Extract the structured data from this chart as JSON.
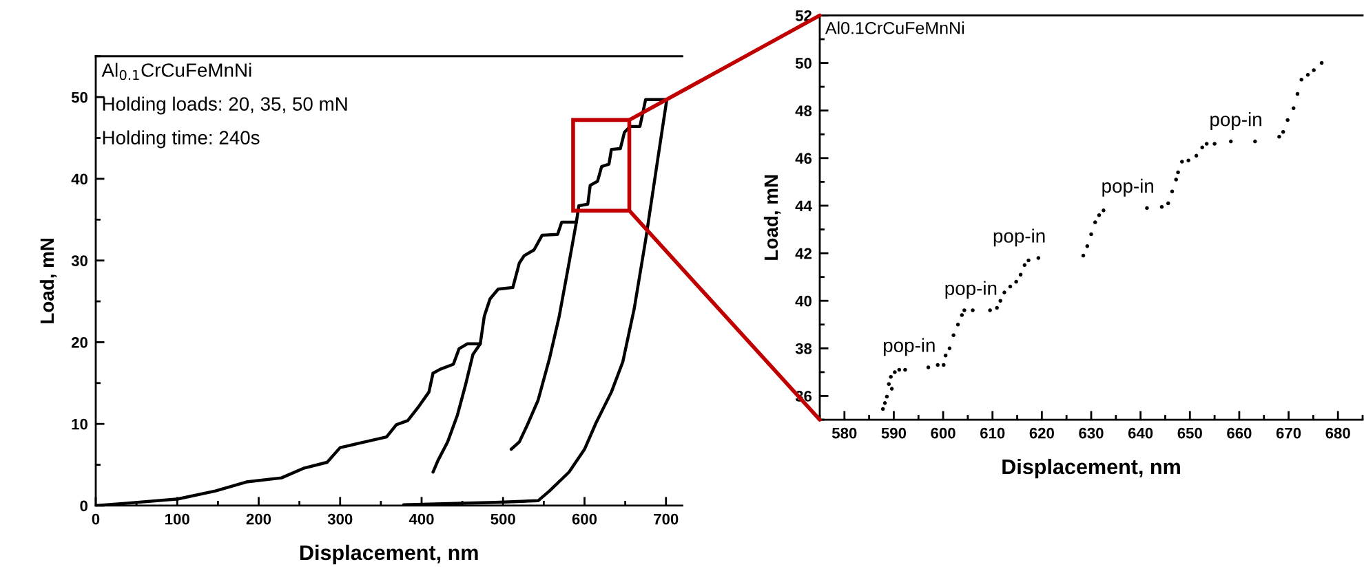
{
  "chart_data": [
    {
      "type": "line",
      "xlabel": "Displacement, nm",
      "ylabel": "Load, mN",
      "xlim": [
        0,
        720
      ],
      "ylim": [
        0,
        55
      ],
      "xticks": [
        0,
        100,
        200,
        300,
        400,
        500,
        600,
        700
      ],
      "yticks": [
        0,
        10,
        20,
        30,
        40,
        50
      ],
      "grid": false,
      "legend": false,
      "marker": "none",
      "line_style": "solid",
      "annotations": [
        "Al$_{0.1}$CrCuFeMnNi",
        "Holding loads: 20, 35, 50 mN",
        "Holding time: 240s"
      ],
      "series": [
        {
          "color": "#000000",
          "x": [
            0,
            39,
            100,
            147,
            185,
            228,
            256,
            284,
            300,
            322,
            357,
            369,
            383,
            397,
            409,
            414,
            423,
            439,
            446,
            456,
            472,
            477,
            484,
            494,
            512,
            520,
            526,
            538,
            548,
            567,
            572,
            590,
            593,
            604,
            607,
            616,
            621,
            630,
            633,
            644,
            649,
            656,
            668,
            675,
            701
          ],
          "values": [
            0,
            0.3,
            0.8,
            1.8,
            2.9,
            3.4,
            4.6,
            5.3,
            7.1,
            7.6,
            8.4,
            9.9,
            10.4,
            12.2,
            13.9,
            16.2,
            16.7,
            17.3,
            19.2,
            19.8,
            19.8,
            23.2,
            25.3,
            26.5,
            26.7,
            29.7,
            30.6,
            31.3,
            33.1,
            33.2,
            34.7,
            34.7,
            36.7,
            36.9,
            39.2,
            39.7,
            41.5,
            41.8,
            43.6,
            43.7,
            45.7,
            46.4,
            46.4,
            49.7,
            49.7
          ]
        },
        {
          "color": "#000000",
          "x": [
            472,
            463,
            454,
            444,
            432,
            420,
            414
          ],
          "values": [
            19.8,
            18.5,
            14.8,
            11.1,
            7.8,
            5.5,
            4.1
          ]
        },
        {
          "color": "#000000",
          "x": [
            590,
            581,
            569,
            557,
            543,
            529,
            520,
            510
          ],
          "values": [
            34.7,
            29.7,
            23.2,
            18,
            12.9,
            9.7,
            7.8,
            6.9
          ]
        },
        {
          "color": "#000000",
          "x": [
            701,
            689,
            675,
            661,
            647,
            633,
            614,
            600,
            581,
            557,
            543,
            491,
            378
          ],
          "values": [
            49.7,
            41.8,
            32.5,
            24.1,
            17.6,
            13.9,
            10.1,
            6.9,
            4.1,
            1.8,
            0.6,
            0.4,
            0.1
          ]
        }
      ]
    },
    {
      "type": "scatter",
      "xlabel": "Displacement, nm",
      "ylabel": "Load, mN",
      "xlim": [
        575,
        685
      ],
      "ylim": [
        35,
        52
      ],
      "xticks": [
        580,
        590,
        600,
        610,
        620,
        630,
        640,
        650,
        660,
        670,
        680
      ],
      "yticks": [
        36,
        38,
        40,
        42,
        44,
        46,
        48,
        50,
        52
      ],
      "grid": false,
      "legend": false,
      "marker": "circle",
      "annotations": [
        "Al0.1CrCuFeMnNi",
        {
          "text": "pop-in",
          "x": 597.0,
          "y": 37.2
        },
        {
          "text": "pop-in",
          "x": 609.5,
          "y": 39.6
        },
        {
          "text": "pop-in",
          "x": 619.3,
          "y": 41.8
        },
        {
          "text": "pop-in",
          "x": 641.3,
          "y": 43.9
        },
        {
          "text": "pop-in",
          "x": 663.2,
          "y": 46.7
        }
      ],
      "series": [
        {
          "color": "#000000",
          "x": [
            587.8,
            588.2,
            588.6,
            589.0,
            589.6,
            589.4,
            590.2,
            591.1,
            592.3,
            597.0,
            598.9,
            600.1,
            600.5,
            601.3,
            602.1,
            603.0,
            603.8,
            604.3,
            606.0,
            609.5,
            610.9,
            611.6,
            612.4,
            613.6,
            614.8,
            615.7,
            616.5,
            617.3,
            619.3,
            628.4,
            629.2,
            630.0,
            630.8,
            631.6,
            632.5,
            641.3,
            644.3,
            645.6,
            646.4,
            647.2,
            647.6,
            648.4,
            649.7,
            651.3,
            652.5,
            653.4,
            655.0,
            658.3,
            663.2,
            668.1,
            668.9,
            669.8,
            671.0,
            671.8,
            672.6,
            673.9,
            675.1,
            676.7
          ],
          "values": [
            35.45,
            35.7,
            35.97,
            36.5,
            36.3,
            36.8,
            37.0,
            37.1,
            37.1,
            37.2,
            37.3,
            37.3,
            37.7,
            38.0,
            38.55,
            39.0,
            39.4,
            39.6,
            39.6,
            39.6,
            39.7,
            40.0,
            40.35,
            40.6,
            40.8,
            41.1,
            41.5,
            41.7,
            41.8,
            41.9,
            42.3,
            42.8,
            43.3,
            43.6,
            43.8,
            43.9,
            43.95,
            44.1,
            44.6,
            45.1,
            45.4,
            45.85,
            45.9,
            46.1,
            46.45,
            46.6,
            46.6,
            46.7,
            46.7,
            46.9,
            47.1,
            47.6,
            48.1,
            48.7,
            49.3,
            49.5,
            49.7,
            50.0
          ]
        }
      ]
    }
  ]
}
